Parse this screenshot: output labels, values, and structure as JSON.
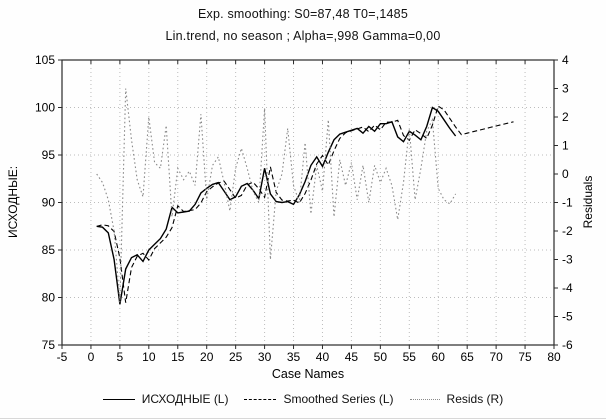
{
  "header": {
    "title": "Exp. smoothing: S0=87,48 T0=,1485",
    "subtitle": "Lin.trend, no season ; Alpha=,998 Gamma=0,00"
  },
  "colors": {
    "original_series": "#000000",
    "smoothed_series": "#1a1a1a",
    "resids_series": "#8a8a8a",
    "grid": "#bcbcbc",
    "frame": "#2a2a2a",
    "background": "#fefefe"
  },
  "chart_data": {
    "type": "line",
    "title": "Exp. smoothing: S0=87,48 T0=,1485",
    "subtitle": "Lin.trend, no season ; Alpha=,998 Gamma=0,00",
    "xlabel": "Case Names",
    "ylabel_left": "ИСХОДНЫЕ:",
    "ylabel_right": "Residuals",
    "xlim": [
      -5,
      80
    ],
    "xticks": [
      -5,
      0,
      5,
      10,
      15,
      20,
      25,
      30,
      35,
      40,
      45,
      50,
      55,
      60,
      65,
      70,
      75,
      80
    ],
    "ylim_left": [
      75,
      105
    ],
    "yticks_left": [
      75,
      80,
      85,
      90,
      95,
      100,
      105
    ],
    "ylim_right": [
      -6,
      4
    ],
    "yticks_right": [
      -6,
      -5,
      -4,
      -3,
      -2,
      -1,
      0,
      1,
      2,
      3,
      4
    ],
    "grid": "dotted lines at interior major ticks, both axes",
    "legend_position": "bottom",
    "series": [
      {
        "name": "ИСХОДНЫЕ (L)",
        "axis": "left",
        "style": "solid",
        "x_start": 1,
        "values": [
          87.5,
          87.4,
          86.8,
          84.0,
          79.3,
          83.0,
          84.2,
          84.5,
          83.8,
          85.0,
          85.6,
          86.2,
          87.2,
          89.5,
          88.9,
          89.0,
          89.1,
          89.8,
          91.0,
          91.5,
          91.9,
          92.1,
          91.2,
          90.3,
          90.6,
          91.7,
          92.0,
          91.3,
          90.4,
          93.6,
          90.9,
          90.1,
          90.0,
          90.1,
          89.8,
          90.8,
          92.2,
          93.9,
          94.8,
          93.8,
          95.3,
          96.6,
          97.2,
          97.4,
          97.6,
          97.8,
          97.3,
          98.0,
          97.5,
          98.3,
          98.3,
          98.5,
          96.9,
          96.4,
          97.5,
          97.1,
          96.6,
          98.0,
          100.0,
          99.6,
          98.7,
          97.8,
          97.0
        ]
      },
      {
        "name": "Smoothed Series (L)",
        "axis": "left",
        "style": "dashed",
        "x_start": 1,
        "values": [
          87.48,
          87.65,
          87.55,
          86.95,
          84.15,
          79.45,
          83.15,
          84.35,
          84.65,
          83.95,
          85.15,
          85.75,
          86.35,
          87.35,
          89.65,
          89.05,
          89.15,
          89.25,
          89.95,
          91.15,
          91.65,
          92.05,
          92.25,
          91.35,
          90.45,
          90.75,
          91.85,
          92.15,
          91.45,
          90.55,
          93.75,
          91.05,
          90.25,
          90.15,
          90.25,
          89.95,
          90.95,
          92.35,
          94.05,
          94.95,
          93.95,
          95.45,
          96.75,
          97.35,
          97.55,
          97.75,
          97.95,
          97.45,
          98.15,
          97.65,
          98.45,
          98.45,
          98.65,
          97.05,
          96.55,
          97.65,
          97.25,
          96.75,
          98.15,
          100.15,
          99.75,
          98.85,
          97.95,
          97.15,
          97.3,
          97.45,
          97.6,
          97.75,
          97.9,
          98.05,
          98.2,
          98.35,
          98.5
        ]
      },
      {
        "name": "Resids (R)",
        "axis": "right",
        "style": "dotted",
        "x_start": 1,
        "values": [
          0.0,
          -0.3,
          -0.9,
          -2.0,
          -4.5,
          3.0,
          1.2,
          -0.2,
          -0.8,
          2.0,
          0.4,
          0.2,
          1.7,
          -1.5,
          0.2,
          -0.2,
          0.1,
          -0.4,
          2.1,
          -0.9,
          0.3,
          0.6,
          -0.3,
          -1.3,
          0.2,
          0.9,
          0.2,
          -0.6,
          -1.0,
          2.3,
          -3.0,
          -0.6,
          0.0,
          1.6,
          -0.4,
          -1.0,
          1.1,
          -1.4,
          0.3,
          -0.6,
          1.9,
          -1.5,
          0.5,
          -0.4,
          0.4,
          -0.9,
          0.3,
          -1.0,
          0.3,
          -0.3,
          0.2,
          -0.4,
          -1.6,
          -0.3,
          1.6,
          -0.9,
          0.2,
          1.5,
          1.9,
          -0.5,
          -0.9,
          -1.05,
          -0.7
        ]
      }
    ]
  },
  "legend": {
    "items": [
      {
        "label": "ИСХОДНЫЕ (L)"
      },
      {
        "label": "Smoothed Series (L)"
      },
      {
        "label": "Resids (R)"
      }
    ]
  }
}
